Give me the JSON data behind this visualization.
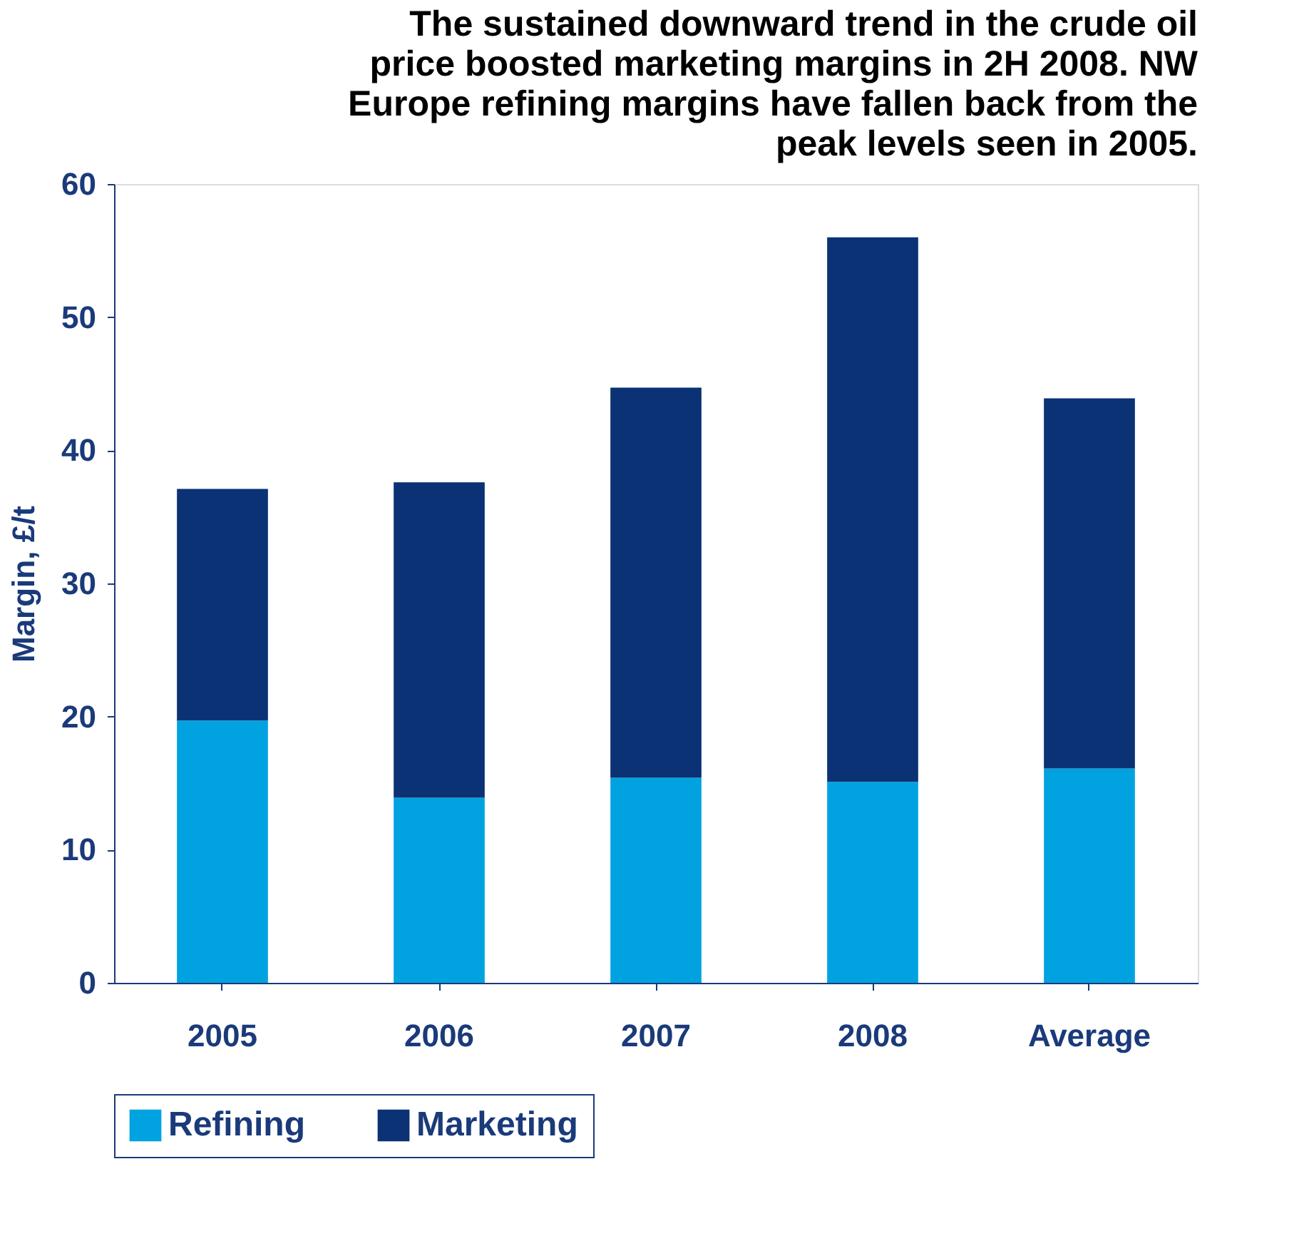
{
  "chart_data": {
    "type": "bar",
    "stacked": true,
    "title": "The sustained downward trend in the crude oil price boosted marketing margins in 2H 2008. NW Europe refining margins have fallen back from the peak levels seen in 2005.",
    "ylabel": "Margin, £/t",
    "categories": [
      "2005",
      "2006",
      "2007",
      "2008",
      "Average"
    ],
    "series": [
      {
        "name": "Refining",
        "color": "#00a3e0",
        "values": [
          19.7,
          13.9,
          15.4,
          15.1,
          16.1
        ]
      },
      {
        "name": "Marketing",
        "color": "#0a3274",
        "values": [
          17.4,
          23.7,
          29.3,
          40.9,
          27.8
        ]
      }
    ],
    "ylim": [
      0,
      60
    ],
    "yticks": [
      0,
      10,
      20,
      30,
      40,
      50,
      60
    ],
    "grid": false,
    "legend": "bottom"
  }
}
